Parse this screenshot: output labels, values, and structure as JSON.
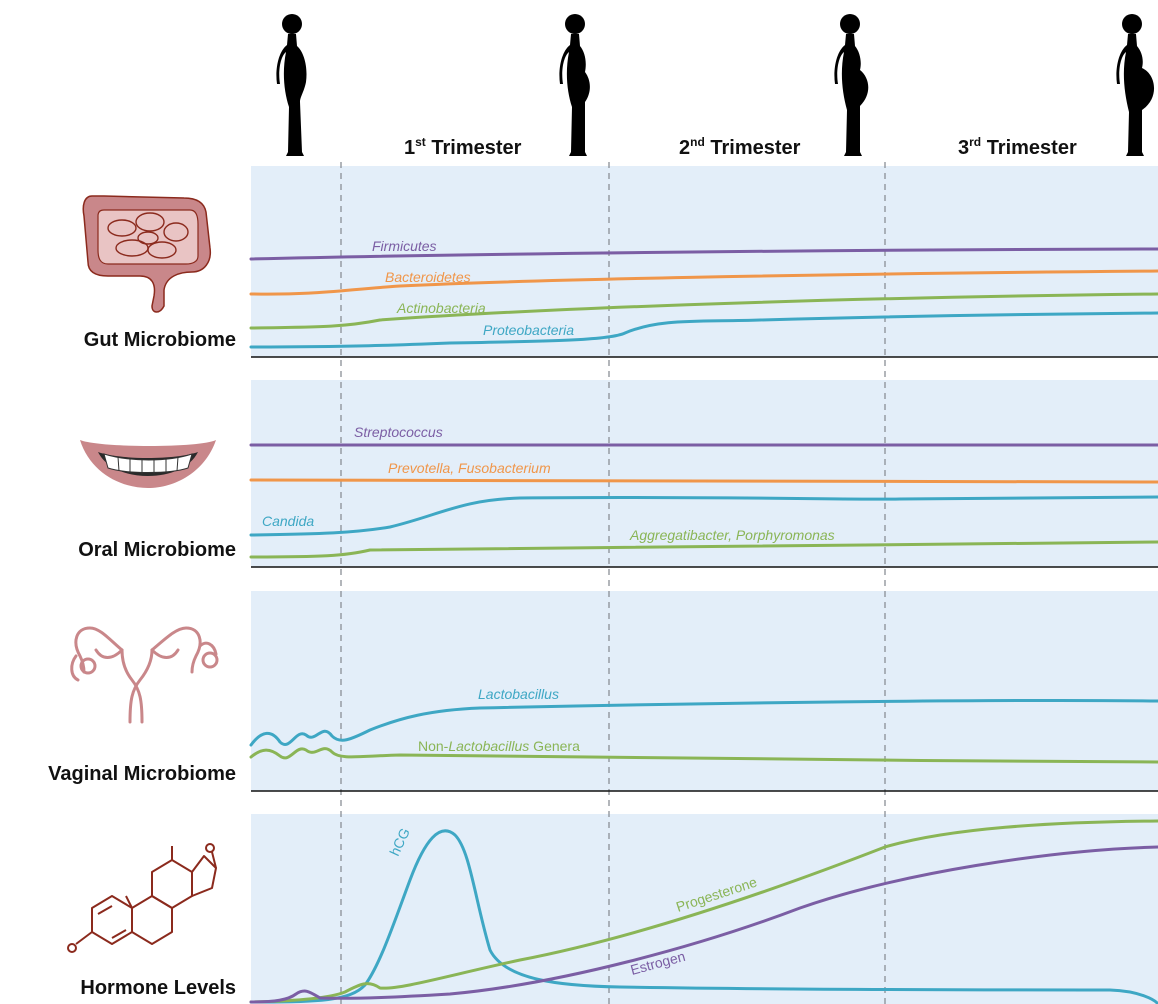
{
  "colors": {
    "purple": "#7b5ea4",
    "orange": "#f0964a",
    "green": "#8ab556",
    "teal": "#3ea7c4",
    "panel": "#e3eef9",
    "icon_red": "#b83a2e",
    "icon_pink": "#c9878a",
    "steroid": "#8b2a1d"
  },
  "icons": [
    "pregnant-woman-silhouette-icon",
    "intestine-icon",
    "smiling-mouth-icon",
    "uterus-icon",
    "steroid-molecule-icon"
  ],
  "trimesters": [
    {
      "number": "1",
      "suffix": "st",
      "label": "Trimester"
    },
    {
      "number": "2",
      "suffix": "nd",
      "label": "Trimester"
    },
    {
      "number": "3",
      "suffix": "rd",
      "label": "Trimester"
    }
  ],
  "rows": [
    {
      "label": "Gut Microbiome",
      "series": [
        {
          "name": "Firmicutes",
          "color": "purple"
        },
        {
          "name": "Bacteroidetes",
          "color": "orange"
        },
        {
          "name": "Actinobacteria",
          "color": "green"
        },
        {
          "name": "Proteobacteria",
          "color": "teal"
        }
      ]
    },
    {
      "label": "Oral Microbiome",
      "series": [
        {
          "name": "Streptococcus",
          "color": "purple"
        },
        {
          "name": "Prevotella, Fusobacterium",
          "color": "orange"
        },
        {
          "name": "Candida",
          "color": "teal"
        },
        {
          "name": "Aggregatibacter, Porphyromonas",
          "color": "green"
        }
      ]
    },
    {
      "label": "Vaginal Microbiome",
      "series": [
        {
          "name": "Lactobacillus",
          "color": "teal"
        },
        {
          "name_prefix": "Non-",
          "name_italic": "Lactobacillus",
          "name_suffix": " Genera",
          "color": "green"
        }
      ]
    },
    {
      "label": "Hormone Levels",
      "series": [
        {
          "name": "hCG",
          "color": "teal"
        },
        {
          "name": "Progesterone",
          "color": "green"
        },
        {
          "name": "Estrogen",
          "color": "purple"
        }
      ]
    }
  ]
}
